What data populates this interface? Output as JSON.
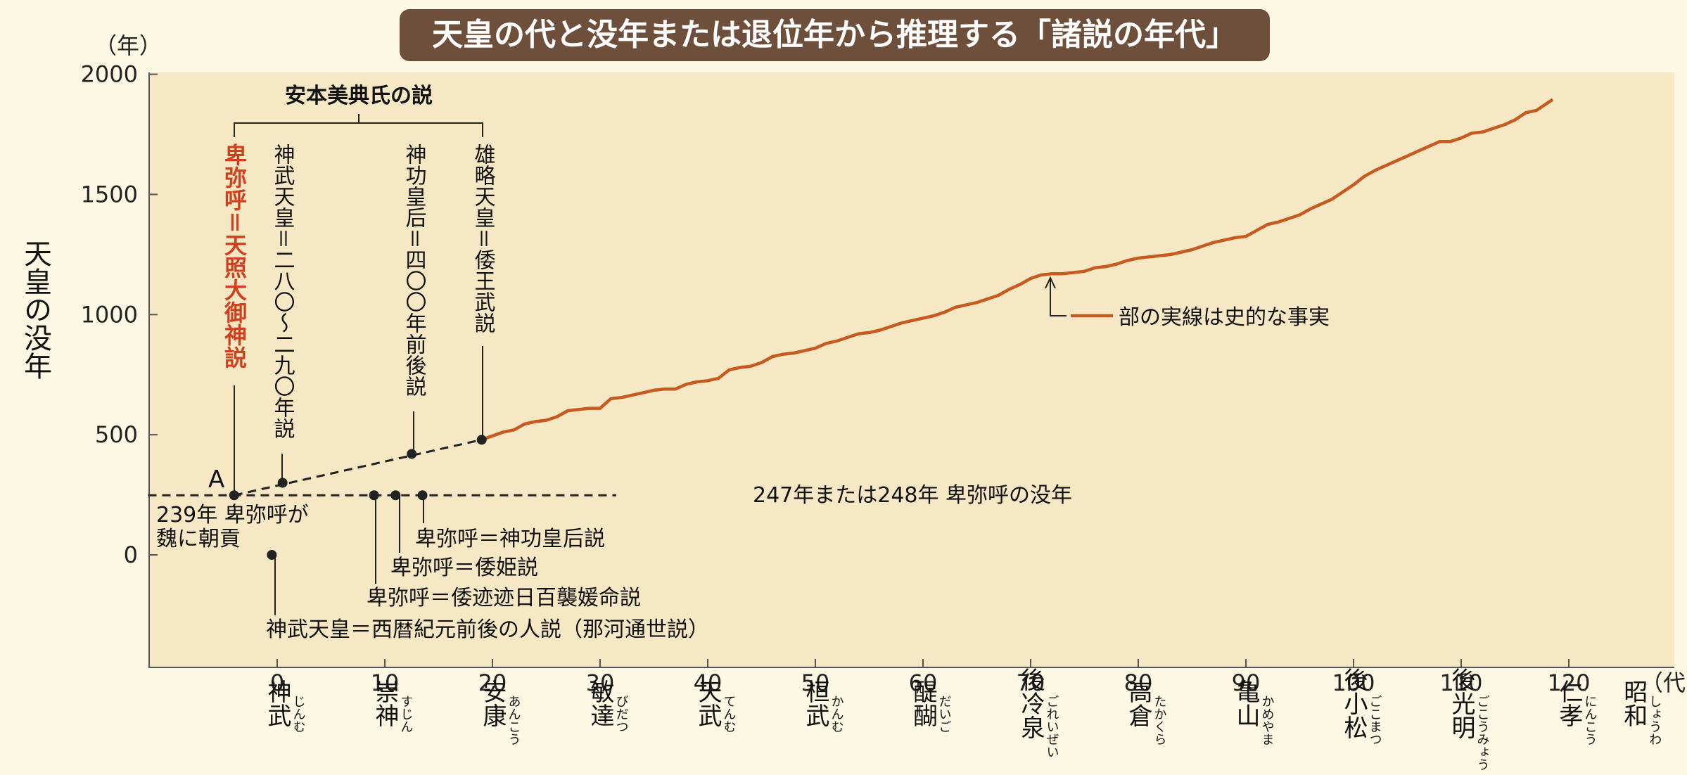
{
  "chart_data": {
    "type": "line",
    "title": "天皇の代と没年または退位年から推理する「諸説の年代」",
    "y_unit": "（年）",
    "x_unit": "（代）",
    "ylabel": "天皇の没年",
    "ylim": [
      -450,
      2000
    ],
    "xlim": [
      -12,
      128
    ],
    "yticks": [
      2000,
      1500,
      1000,
      500,
      0
    ],
    "xticks": [
      {
        "value": 0,
        "name": "神武",
        "ruby": "じんむ"
      },
      {
        "value": 10,
        "name": "崇神",
        "ruby": "すじん"
      },
      {
        "value": 20,
        "name": "安康",
        "ruby": "あんこう"
      },
      {
        "value": 30,
        "name": "敏達",
        "ruby": "びだつ"
      },
      {
        "value": 40,
        "name": "天武",
        "ruby": "てんむ"
      },
      {
        "value": 50,
        "name": "桓武",
        "ruby": "かんむ"
      },
      {
        "value": 60,
        "name": "醍醐",
        "ruby": "だいご"
      },
      {
        "value": 70,
        "name": "後冷泉",
        "ruby": "ごれいぜい"
      },
      {
        "value": 80,
        "name": "高倉",
        "ruby": "たかくら"
      },
      {
        "value": 90,
        "name": "亀山",
        "ruby": "かめやま"
      },
      {
        "value": 100,
        "name": "後小松",
        "ruby": "ごこまつ"
      },
      {
        "value": 110,
        "name": "後光明",
        "ruby": "ごこうみょう"
      },
      {
        "value": 120,
        "name": "仁孝",
        "ruby": "にんこう"
      }
    ],
    "extra_tick_name": {
      "name": "昭和",
      "ruby": "しょうわ"
    },
    "series": [
      {
        "legend": "部の実線は史的な事実",
        "color": "#C75A1F",
        "x": [
          19,
          21,
          22,
          23,
          24,
          25,
          26,
          27,
          28,
          29,
          30,
          31,
          32,
          33,
          34,
          35,
          36,
          37,
          38,
          39,
          40,
          41,
          42,
          43,
          44,
          45,
          46,
          47,
          48,
          49,
          50,
          51,
          52,
          53,
          54,
          55,
          56,
          57,
          58,
          59,
          60,
          61,
          62,
          63,
          64,
          65,
          66,
          67,
          68,
          69,
          70,
          71,
          72,
          73,
          74,
          75,
          76,
          77,
          78,
          79,
          80,
          81,
          82,
          83,
          84,
          85,
          86,
          87,
          88,
          89,
          90,
          91,
          92,
          93,
          94,
          95,
          96,
          97,
          98,
          99,
          100,
          101,
          102,
          103,
          104,
          105,
          106,
          107,
          108,
          109,
          110,
          111,
          112,
          113,
          114,
          115,
          116,
          117,
          118,
          118.5
        ],
        "values": [
          479,
          511,
          520,
          545,
          555,
          560,
          575,
          600,
          605,
          610,
          610,
          650,
          655,
          665,
          675,
          685,
          690,
          690,
          710,
          720,
          725,
          735,
          770,
          780,
          785,
          800,
          825,
          835,
          840,
          850,
          860,
          880,
          890,
          905,
          920,
          925,
          935,
          950,
          965,
          975,
          985,
          995,
          1010,
          1030,
          1040,
          1050,
          1065,
          1080,
          1105,
          1125,
          1150,
          1165,
          1170,
          1170,
          1175,
          1180,
          1195,
          1200,
          1210,
          1225,
          1235,
          1240,
          1245,
          1250,
          1260,
          1270,
          1285,
          1300,
          1310,
          1320,
          1325,
          1350,
          1375,
          1385,
          1400,
          1415,
          1440,
          1460,
          1480,
          1510,
          1540,
          1575,
          1600,
          1620,
          1640,
          1660,
          1680,
          1700,
          1720,
          1720,
          1735,
          1755,
          1760,
          1775,
          1790,
          1810,
          1840,
          1850,
          1880,
          1895
        ]
      }
    ],
    "dashed_lines": [
      {
        "x": [
          -4,
          19
        ],
        "y": [
          248,
          479
        ]
      },
      {
        "x": [
          -12,
          31.5
        ],
        "y": [
          248,
          248
        ]
      }
    ],
    "points": [
      {
        "x": -4,
        "y": 248
      },
      {
        "x": 0.5,
        "y": 300
      },
      {
        "x": 12.5,
        "y": 420
      },
      {
        "x": 19,
        "y": 479
      },
      {
        "x": -0.5,
        "y": 0
      },
      {
        "x": 9,
        "y": 248
      },
      {
        "x": 11,
        "y": 248
      },
      {
        "x": 13.5,
        "y": 248
      }
    ],
    "annotations": {
      "yasumoto": "安本美典氏の説",
      "himiko_amaterasu": "卑弥呼＝天照大御神説",
      "jimmu_280": "神武天皇＝二八〇～二九〇年説",
      "jingu_400": "神功皇后＝四〇〇年前後説",
      "yuryaku": "雄略天皇＝倭王武説",
      "point_a": "A",
      "tribute_line1": "239年 卑弥呼が",
      "tribute_line2": "魏に朝貢",
      "himiko_death": "247年または248年 卑弥呼の没年",
      "himiko_jingu": "卑弥呼＝神功皇后説",
      "himiko_yamatohime": "卑弥呼＝倭姫説",
      "himiko_momoso": "卑弥呼＝倭迹迹日百襲媛命説",
      "naka_theory": "神武天皇＝西暦紀元前後の人説（那河通世説）"
    }
  }
}
